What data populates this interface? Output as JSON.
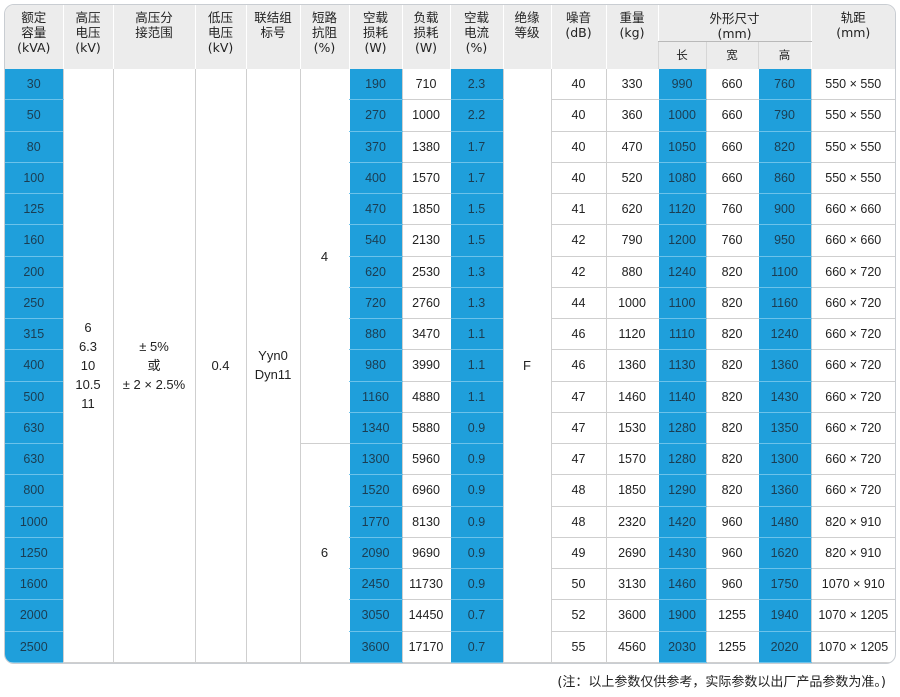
{
  "headers": {
    "capacity": "额定\n容量\n(kVA)",
    "hv": "高压\n电压\n(kV)",
    "tap": "高压分\n接范围",
    "lv": "低压\n电压\n(kV)",
    "vector": "联结组\n标号",
    "impedance": "短路\n抗阻\n(%)",
    "noload_loss": "空载\n损耗\n(W)",
    "load_loss": "负载\n损耗\n(W)",
    "noload_current": "空载\n电流\n(%)",
    "insulation": "绝缘\n等级",
    "noise": "噪音\n(dB)",
    "weight": "重量\n(kg)",
    "dimensions": "外形尺寸\n(mm)",
    "dim_length": "长",
    "dim_width": "宽",
    "dim_height": "高",
    "gauge": "轨距\n(mm)"
  },
  "merged": {
    "hv_values": "6\n6.3\n10\n10.5\n11",
    "tap_range": "± 5%\n或\n± 2 × 2.5%",
    "lv_value": "0.4",
    "vector_groups": "Yyn0\nDyn11",
    "impedance_a": "4",
    "impedance_b": "6",
    "insulation_class": "F"
  },
  "rows": [
    [
      "30",
      "190",
      "710",
      "2.3",
      "40",
      "330",
      "990",
      "660",
      "760",
      "550 × 550"
    ],
    [
      "50",
      "270",
      "1000",
      "2.2",
      "40",
      "360",
      "1000",
      "660",
      "790",
      "550 × 550"
    ],
    [
      "80",
      "370",
      "1380",
      "1.7",
      "40",
      "470",
      "1050",
      "660",
      "820",
      "550 × 550"
    ],
    [
      "100",
      "400",
      "1570",
      "1.7",
      "40",
      "520",
      "1080",
      "660",
      "860",
      "550 × 550"
    ],
    [
      "125",
      "470",
      "1850",
      "1.5",
      "41",
      "620",
      "1120",
      "760",
      "900",
      "660 × 660"
    ],
    [
      "160",
      "540",
      "2130",
      "1.5",
      "42",
      "790",
      "1200",
      "760",
      "950",
      "660 × 660"
    ],
    [
      "200",
      "620",
      "2530",
      "1.3",
      "42",
      "880",
      "1240",
      "820",
      "1100",
      "660 × 720"
    ],
    [
      "250",
      "720",
      "2760",
      "1.3",
      "44",
      "1000",
      "1100",
      "820",
      "1160",
      "660 × 720"
    ],
    [
      "315",
      "880",
      "3470",
      "1.1",
      "46",
      "1120",
      "1110",
      "820",
      "1240",
      "660 × 720"
    ],
    [
      "400",
      "980",
      "3990",
      "1.1",
      "46",
      "1360",
      "1130",
      "820",
      "1360",
      "660 × 720"
    ],
    [
      "500",
      "1160",
      "4880",
      "1.1",
      "47",
      "1460",
      "1140",
      "820",
      "1430",
      "660 × 720"
    ],
    [
      "630",
      "1340",
      "5880",
      "0.9",
      "47",
      "1530",
      "1280",
      "820",
      "1350",
      "660 × 720"
    ],
    [
      "630",
      "1300",
      "5960",
      "0.9",
      "47",
      "1570",
      "1280",
      "820",
      "1300",
      "660 × 720"
    ],
    [
      "800",
      "1520",
      "6960",
      "0.9",
      "48",
      "1850",
      "1290",
      "820",
      "1360",
      "660 × 720"
    ],
    [
      "1000",
      "1770",
      "8130",
      "0.9",
      "48",
      "2320",
      "1420",
      "960",
      "1480",
      "820 × 910"
    ],
    [
      "1250",
      "2090",
      "9690",
      "0.9",
      "49",
      "2690",
      "1430",
      "960",
      "1620",
      "820 × 910"
    ],
    [
      "1600",
      "2450",
      "11730",
      "0.9",
      "50",
      "3130",
      "1460",
      "960",
      "1750",
      "1070 × 910"
    ],
    [
      "2000",
      "3050",
      "14450",
      "0.7",
      "52",
      "3600",
      "1900",
      "1255",
      "1940",
      "1070 × 1205"
    ],
    [
      "2500",
      "3600",
      "17170",
      "0.7",
      "55",
      "4560",
      "2030",
      "1255",
      "2020",
      "1070 × 1205"
    ]
  ],
  "footnote": "(注：以上参数仅供参考，实际参数以出厂产品参数为准。)"
}
